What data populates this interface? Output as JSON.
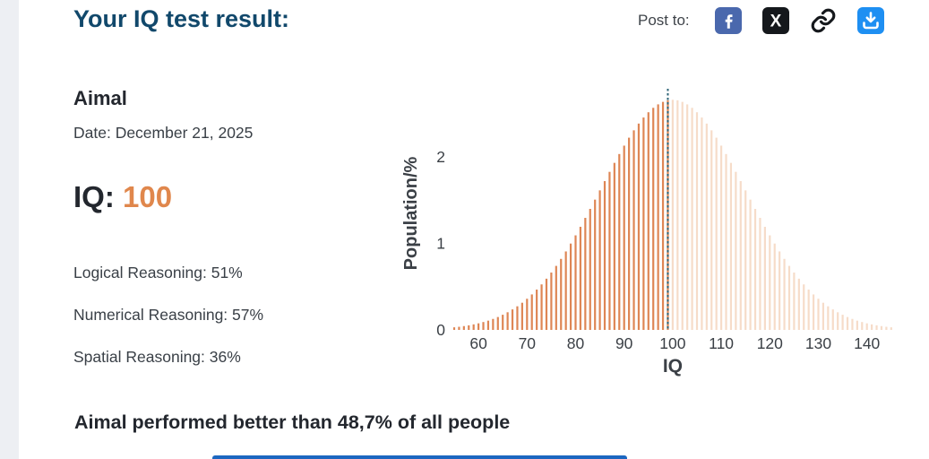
{
  "header": {
    "title": "Your IQ test result:",
    "title_color": "#11486b",
    "post_to_label": "Post to:",
    "share_icons": [
      {
        "name": "facebook-icon",
        "bg": "#4a68ad"
      },
      {
        "name": "x-twitter-icon",
        "bg": "#15181c"
      },
      {
        "name": "copy-link-icon",
        "bg": "none"
      },
      {
        "name": "download-icon",
        "bg": "#1e8ff2"
      }
    ]
  },
  "result": {
    "name": "Aimal",
    "date_line": "Date: December 21, 2025",
    "iq_label": "IQ:",
    "iq_value": "100",
    "iq_value_color": "#e0874c",
    "scores": [
      "Logical Reasoning: 51%",
      "Numerical Reasoning: 57%",
      "Spatial Reasoning: 36%"
    ]
  },
  "summary": {
    "text": "Aimal performed better than 48,7% of all people"
  },
  "bottom_bar": {
    "color": "#1c67c0"
  },
  "chart_data": {
    "type": "bar",
    "title": "",
    "xlabel": "IQ",
    "ylabel": "Population/%",
    "x_start": 55,
    "x_end": 145,
    "x_step": 1,
    "values": [
      0.03,
      0.036,
      0.044,
      0.053,
      0.064,
      0.076,
      0.091,
      0.107,
      0.127,
      0.149,
      0.175,
      0.204,
      0.237,
      0.273,
      0.314,
      0.36,
      0.41,
      0.466,
      0.526,
      0.592,
      0.663,
      0.74,
      0.821,
      0.907,
      0.998,
      1.093,
      1.192,
      1.295,
      1.399,
      1.506,
      1.613,
      1.72,
      1.827,
      1.931,
      2.033,
      2.13,
      2.222,
      2.307,
      2.385,
      2.455,
      2.516,
      2.567,
      2.607,
      2.636,
      2.654,
      2.66,
      2.654,
      2.636,
      2.607,
      2.567,
      2.516,
      2.455,
      2.385,
      2.307,
      2.222,
      2.13,
      2.033,
      1.931,
      1.827,
      1.72,
      1.613,
      1.506,
      1.399,
      1.295,
      1.192,
      1.093,
      0.998,
      0.907,
      0.821,
      0.74,
      0.663,
      0.592,
      0.526,
      0.466,
      0.41,
      0.36,
      0.314,
      0.273,
      0.237,
      0.204,
      0.175,
      0.149,
      0.127,
      0.107,
      0.091,
      0.076,
      0.064,
      0.053,
      0.044,
      0.036,
      0.03
    ],
    "x_ticks": [
      60,
      70,
      80,
      90,
      100,
      110,
      120,
      130,
      140
    ],
    "y_ticks": [
      0,
      1,
      2
    ],
    "ylim": [
      0,
      2.8
    ],
    "grid": false,
    "legend": "none",
    "marker_iq": 99,
    "highlight_max_iq": 99,
    "bar_color_left": "#de8655",
    "bar_color_right": "#f6dcc9",
    "marker_color": "#2f6577",
    "axis_text_color": "#3b4046"
  }
}
